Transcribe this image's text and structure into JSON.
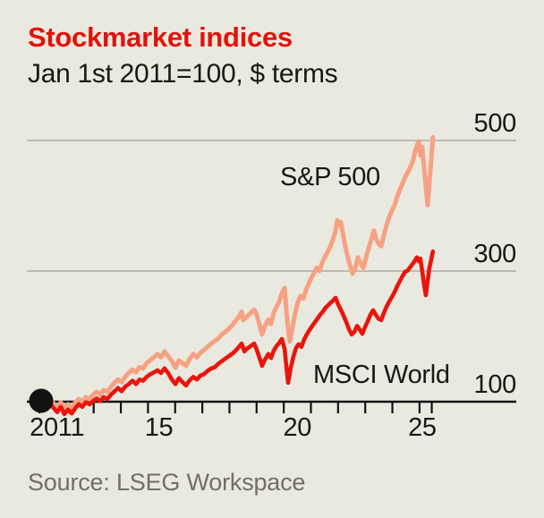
{
  "header": {
    "title": "Stockmarket indices",
    "subtitle": "Jan 1st 2011=100, $ terms"
  },
  "footer": {
    "source": "Source: LSEG Workspace"
  },
  "colors": {
    "background": "#E9E9DF",
    "title_red": "#E3120B",
    "sp500_line": "#F7A183",
    "msci_line": "#E9150D",
    "gridline": "#BCBCB2",
    "axis": "#121212",
    "text": "#181815",
    "source_gray": "#716F66"
  },
  "chart_data": {
    "type": "line",
    "title": "Stockmarket indices",
    "subtitle": "Jan 1st 2011=100, $ terms",
    "grid": "horizontal-only",
    "legend_position": "inline-annotations",
    "x_axis": {
      "range": [
        2011,
        2025.5
      ],
      "tick_years": [
        2011,
        2012,
        2013,
        2014,
        2015,
        2016,
        2017,
        2018,
        2019,
        2020,
        2021,
        2022,
        2023,
        2024,
        2025,
        2025.45
      ],
      "labels": [
        {
          "text": "2011",
          "t": 2011.65
        },
        {
          "text": "15",
          "t": 2015.4
        },
        {
          "text": "20",
          "t": 2020.5
        },
        {
          "text": "25",
          "t": 2025.1
        }
      ]
    },
    "y_axis": {
      "range": [
        80,
        530
      ],
      "baseline_value": 100,
      "gridline_values": [
        500,
        300
      ],
      "labels": [
        {
          "text": "500",
          "value": 500
        },
        {
          "text": "300",
          "value": 300
        },
        {
          "text": "100",
          "value": 100
        }
      ]
    },
    "start_marker": {
      "t": 2011.0,
      "value": 100
    },
    "series": [
      {
        "name": "S&P 500",
        "color": "#F7A183",
        "label_pos": {
          "x": 313,
          "y": 182
        },
        "points": [
          [
            2011.0,
            100
          ],
          [
            2011.13,
            100
          ],
          [
            2011.26,
            107
          ],
          [
            2011.4,
            103
          ],
          [
            2011.53,
            97
          ],
          [
            2011.66,
            92
          ],
          [
            2011.79,
            99
          ],
          [
            2011.92,
            89
          ],
          [
            2012.05,
            96
          ],
          [
            2012.19,
            90
          ],
          [
            2012.32,
            99
          ],
          [
            2012.45,
            104
          ],
          [
            2012.58,
            100
          ],
          [
            2012.71,
            107
          ],
          [
            2012.85,
            104
          ],
          [
            2012.98,
            111
          ],
          [
            2013.11,
            115
          ],
          [
            2013.24,
            111
          ],
          [
            2013.37,
            118
          ],
          [
            2013.5,
            115
          ],
          [
            2013.64,
            123
          ],
          [
            2013.77,
            129
          ],
          [
            2013.9,
            134
          ],
          [
            2014.03,
            130
          ],
          [
            2014.16,
            138
          ],
          [
            2014.29,
            144
          ],
          [
            2014.43,
            149
          ],
          [
            2014.56,
            145
          ],
          [
            2014.69,
            153
          ],
          [
            2014.82,
            151
          ],
          [
            2014.95,
            159
          ],
          [
            2015.09,
            164
          ],
          [
            2015.22,
            168
          ],
          [
            2015.35,
            173
          ],
          [
            2015.48,
            168
          ],
          [
            2015.61,
            177
          ],
          [
            2015.74,
            170
          ],
          [
            2015.88,
            162
          ],
          [
            2016.01,
            152
          ],
          [
            2016.14,
            163
          ],
          [
            2016.27,
            159
          ],
          [
            2016.4,
            155
          ],
          [
            2016.54,
            166
          ],
          [
            2016.67,
            173
          ],
          [
            2016.8,
            168
          ],
          [
            2016.93,
            175
          ],
          [
            2017.06,
            179
          ],
          [
            2017.19,
            184
          ],
          [
            2017.33,
            189
          ],
          [
            2017.46,
            193
          ],
          [
            2017.59,
            197
          ],
          [
            2017.72,
            203
          ],
          [
            2017.85,
            207
          ],
          [
            2017.99,
            212
          ],
          [
            2018.12,
            218
          ],
          [
            2018.25,
            225
          ],
          [
            2018.38,
            232
          ],
          [
            2018.45,
            238
          ],
          [
            2018.51,
            225
          ],
          [
            2018.64,
            230
          ],
          [
            2018.78,
            236
          ],
          [
            2018.91,
            241
          ],
          [
            2019.01,
            232
          ],
          [
            2019.1,
            219
          ],
          [
            2019.2,
            203
          ],
          [
            2019.3,
            215
          ],
          [
            2019.43,
            226
          ],
          [
            2019.53,
            219
          ],
          [
            2019.63,
            236
          ],
          [
            2019.73,
            245
          ],
          [
            2019.83,
            253
          ],
          [
            2019.93,
            266
          ],
          [
            2020.03,
            274
          ],
          [
            2020.09,
            242
          ],
          [
            2020.16,
            211
          ],
          [
            2020.22,
            192
          ],
          [
            2020.32,
            214
          ],
          [
            2020.42,
            236
          ],
          [
            2020.52,
            252
          ],
          [
            2020.62,
            262
          ],
          [
            2020.72,
            258
          ],
          [
            2020.82,
            271
          ],
          [
            2020.92,
            281
          ],
          [
            2021.01,
            289
          ],
          [
            2021.11,
            297
          ],
          [
            2021.21,
            305
          ],
          [
            2021.31,
            300
          ],
          [
            2021.41,
            312
          ],
          [
            2021.51,
            321
          ],
          [
            2021.61,
            329
          ],
          [
            2021.71,
            337
          ],
          [
            2021.81,
            348
          ],
          [
            2021.91,
            362
          ],
          [
            2021.97,
            378
          ],
          [
            2022.04,
            370
          ],
          [
            2022.1,
            375
          ],
          [
            2022.17,
            359
          ],
          [
            2022.23,
            345
          ],
          [
            2022.33,
            326
          ],
          [
            2022.43,
            310
          ],
          [
            2022.53,
            296
          ],
          [
            2022.63,
            304
          ],
          [
            2022.73,
            321
          ],
          [
            2022.83,
            312
          ],
          [
            2022.93,
            305
          ],
          [
            2023.03,
            321
          ],
          [
            2023.12,
            334
          ],
          [
            2023.22,
            348
          ],
          [
            2023.32,
            362
          ],
          [
            2023.39,
            351
          ],
          [
            2023.49,
            342
          ],
          [
            2023.59,
            338
          ],
          [
            2023.69,
            355
          ],
          [
            2023.78,
            370
          ],
          [
            2023.88,
            382
          ],
          [
            2023.98,
            392
          ],
          [
            2024.08,
            401
          ],
          [
            2024.18,
            414
          ],
          [
            2024.28,
            425
          ],
          [
            2024.37,
            434
          ],
          [
            2024.47,
            444
          ],
          [
            2024.57,
            451
          ],
          [
            2024.67,
            460
          ],
          [
            2024.77,
            470
          ],
          [
            2024.83,
            482
          ],
          [
            2024.9,
            492
          ],
          [
            2024.97,
            499
          ],
          [
            2025.03,
            477
          ],
          [
            2025.1,
            490
          ],
          [
            2025.16,
            460
          ],
          [
            2025.23,
            430
          ],
          [
            2025.3,
            401
          ],
          [
            2025.36,
            433
          ],
          [
            2025.43,
            471
          ],
          [
            2025.49,
            505
          ]
        ]
      },
      {
        "name": "MSCI World",
        "color": "#E9150D",
        "label_pos": {
          "x": 350,
          "y": 403
        },
        "points": [
          [
            2011.0,
            100
          ],
          [
            2011.13,
            96
          ],
          [
            2011.26,
            103
          ],
          [
            2011.4,
            97
          ],
          [
            2011.53,
            90
          ],
          [
            2011.66,
            84
          ],
          [
            2011.79,
            92
          ],
          [
            2011.92,
            81
          ],
          [
            2012.05,
            88
          ],
          [
            2012.19,
            82
          ],
          [
            2012.32,
            90
          ],
          [
            2012.45,
            96
          ],
          [
            2012.58,
            92
          ],
          [
            2012.71,
            99
          ],
          [
            2012.85,
            96
          ],
          [
            2012.98,
            101
          ],
          [
            2013.11,
            105
          ],
          [
            2013.24,
            101
          ],
          [
            2013.37,
            107
          ],
          [
            2013.5,
            104
          ],
          [
            2013.64,
            111
          ],
          [
            2013.77,
            116
          ],
          [
            2013.9,
            121
          ],
          [
            2014.03,
            116
          ],
          [
            2014.16,
            123
          ],
          [
            2014.29,
            127
          ],
          [
            2014.43,
            132
          ],
          [
            2014.56,
            127
          ],
          [
            2014.69,
            134
          ],
          [
            2014.82,
            132
          ],
          [
            2014.95,
            138
          ],
          [
            2015.09,
            142
          ],
          [
            2015.22,
            145
          ],
          [
            2015.35,
            148
          ],
          [
            2015.48,
            144
          ],
          [
            2015.61,
            151
          ],
          [
            2015.74,
            144
          ],
          [
            2015.88,
            134
          ],
          [
            2016.01,
            127
          ],
          [
            2016.14,
            136
          ],
          [
            2016.27,
            130
          ],
          [
            2016.4,
            125
          ],
          [
            2016.54,
            133
          ],
          [
            2016.67,
            138
          ],
          [
            2016.8,
            134
          ],
          [
            2016.93,
            140
          ],
          [
            2017.06,
            142
          ],
          [
            2017.19,
            147
          ],
          [
            2017.33,
            151
          ],
          [
            2017.46,
            153
          ],
          [
            2017.59,
            158
          ],
          [
            2017.72,
            162
          ],
          [
            2017.85,
            166
          ],
          [
            2017.99,
            170
          ],
          [
            2018.12,
            174
          ],
          [
            2018.25,
            179
          ],
          [
            2018.45,
            189
          ],
          [
            2018.55,
            177
          ],
          [
            2018.64,
            181
          ],
          [
            2018.78,
            185
          ],
          [
            2018.91,
            189
          ],
          [
            2019.01,
            179
          ],
          [
            2019.1,
            168
          ],
          [
            2019.2,
            155
          ],
          [
            2019.3,
            164
          ],
          [
            2019.43,
            173
          ],
          [
            2019.53,
            167
          ],
          [
            2019.63,
            178
          ],
          [
            2019.73,
            185
          ],
          [
            2019.83,
            190
          ],
          [
            2019.93,
            196
          ],
          [
            2020.03,
            181
          ],
          [
            2020.09,
            156
          ],
          [
            2020.16,
            129
          ],
          [
            2020.26,
            152
          ],
          [
            2020.36,
            170
          ],
          [
            2020.45,
            182
          ],
          [
            2020.55,
            188
          ],
          [
            2020.65,
            184
          ],
          [
            2020.75,
            195
          ],
          [
            2020.85,
            203
          ],
          [
            2020.95,
            210
          ],
          [
            2021.05,
            216
          ],
          [
            2021.15,
            222
          ],
          [
            2021.24,
            227
          ],
          [
            2021.34,
            233
          ],
          [
            2021.44,
            238
          ],
          [
            2021.54,
            244
          ],
          [
            2021.64,
            248
          ],
          [
            2021.74,
            252
          ],
          [
            2021.84,
            256
          ],
          [
            2021.91,
            259
          ],
          [
            2022.0,
            249
          ],
          [
            2022.1,
            241
          ],
          [
            2022.2,
            232
          ],
          [
            2022.3,
            222
          ],
          [
            2022.4,
            211
          ],
          [
            2022.5,
            203
          ],
          [
            2022.6,
            207
          ],
          [
            2022.7,
            216
          ],
          [
            2022.79,
            211
          ],
          [
            2022.89,
            204
          ],
          [
            2022.99,
            214
          ],
          [
            2023.09,
            223
          ],
          [
            2023.19,
            233
          ],
          [
            2023.29,
            240
          ],
          [
            2023.39,
            233
          ],
          [
            2023.49,
            227
          ],
          [
            2023.59,
            225
          ],
          [
            2023.69,
            236
          ],
          [
            2023.78,
            245
          ],
          [
            2023.88,
            253
          ],
          [
            2023.98,
            260
          ],
          [
            2024.08,
            268
          ],
          [
            2024.18,
            277
          ],
          [
            2024.28,
            285
          ],
          [
            2024.37,
            292
          ],
          [
            2024.47,
            299
          ],
          [
            2024.57,
            301
          ],
          [
            2024.67,
            307
          ],
          [
            2024.77,
            312
          ],
          [
            2024.83,
            316
          ],
          [
            2024.9,
            321
          ],
          [
            2024.97,
            315
          ],
          [
            2025.03,
            319
          ],
          [
            2025.1,
            300
          ],
          [
            2025.16,
            281
          ],
          [
            2025.23,
            263
          ],
          [
            2025.3,
            285
          ],
          [
            2025.36,
            304
          ],
          [
            2025.43,
            318
          ],
          [
            2025.49,
            330
          ]
        ]
      }
    ]
  }
}
